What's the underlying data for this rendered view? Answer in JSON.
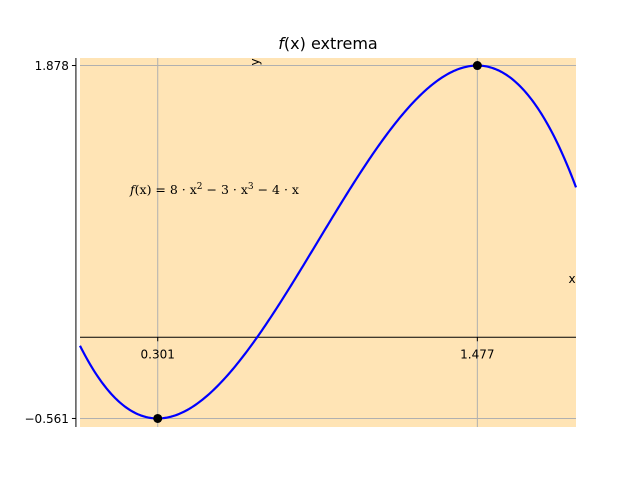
{
  "chart_data": {
    "type": "line",
    "title": "f(x) extrema",
    "title_func": "f",
    "title_rest": "(x) extrema",
    "xlabel": "x",
    "ylabel": "y",
    "formula": {
      "func": "f",
      "arg": "(x) = 8 · x",
      "exp1": "2",
      "mid": " − 3 · x",
      "exp2": "3",
      "tail": " − 4 · x"
    },
    "coefficients": {
      "a3": -3,
      "a2": 8,
      "a1": -4,
      "a0": 0
    },
    "xlim": [
      0.015,
      1.84
    ],
    "ylim": [
      -0.62,
      1.93
    ],
    "x_ticks": [
      0.301,
      1.477
    ],
    "x_tick_labels": [
      "0.301",
      "1.477"
    ],
    "y_ticks": [
      1.878,
      -0.561
    ],
    "y_tick_labels": [
      "1.878",
      "−0.561"
    ],
    "extrema": [
      {
        "x": 0.301,
        "y": -0.561,
        "kind": "minimum"
      },
      {
        "x": 1.477,
        "y": 1.878,
        "kind": "maximum"
      }
    ],
    "grid": true,
    "colors": {
      "background": "#ffe4b5",
      "line": "#0000ff",
      "marker": "#000000",
      "grid": "#b0b0b0",
      "axes": "#000000"
    }
  }
}
